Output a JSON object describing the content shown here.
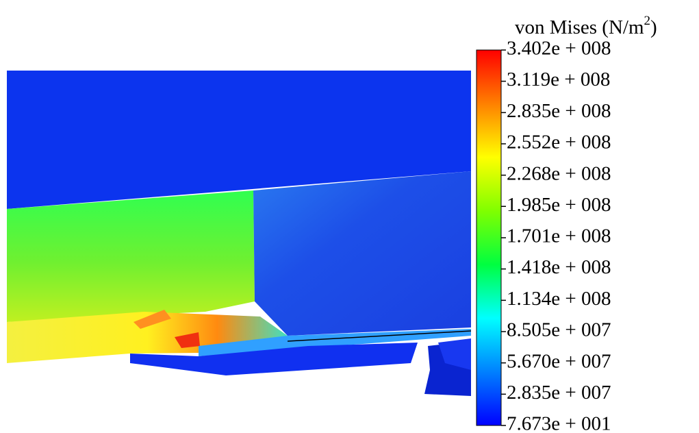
{
  "chart_data": {
    "type": "colorbar",
    "title": {
      "text": "von Mises (N/m",
      "superscript": "2",
      "close": ")"
    },
    "ylim": [
      76.73,
      340200000
    ],
    "yticks": [
      {
        "value": 76.73,
        "label": "7.673e + 001"
      },
      {
        "value": 28350000,
        "label": "2.835e + 007"
      },
      {
        "value": 56700000,
        "label": "5.670e + 007"
      },
      {
        "value": 85050000,
        "label": "8.505e + 007"
      },
      {
        "value": 113400000,
        "label": "1.134e + 008"
      },
      {
        "value": 141800000,
        "label": "1.418e + 008"
      },
      {
        "value": 170100000,
        "label": "1.701e + 008"
      },
      {
        "value": 198500000,
        "label": "1.985e + 008"
      },
      {
        "value": 226800000,
        "label": "2.268e + 008"
      },
      {
        "value": 255200000,
        "label": "2.552e + 008"
      },
      {
        "value": 283500000,
        "label": "2.835e + 008"
      },
      {
        "value": 311900000,
        "label": "3.119e + 008"
      },
      {
        "value": 340200000,
        "label": "3.402e + 008"
      }
    ],
    "colormap": [
      "#0000ff",
      "#0080ff",
      "#00ffff",
      "#00ff40",
      "#80ff00",
      "#ffff00",
      "#ff8000",
      "#ff0000"
    ]
  }
}
